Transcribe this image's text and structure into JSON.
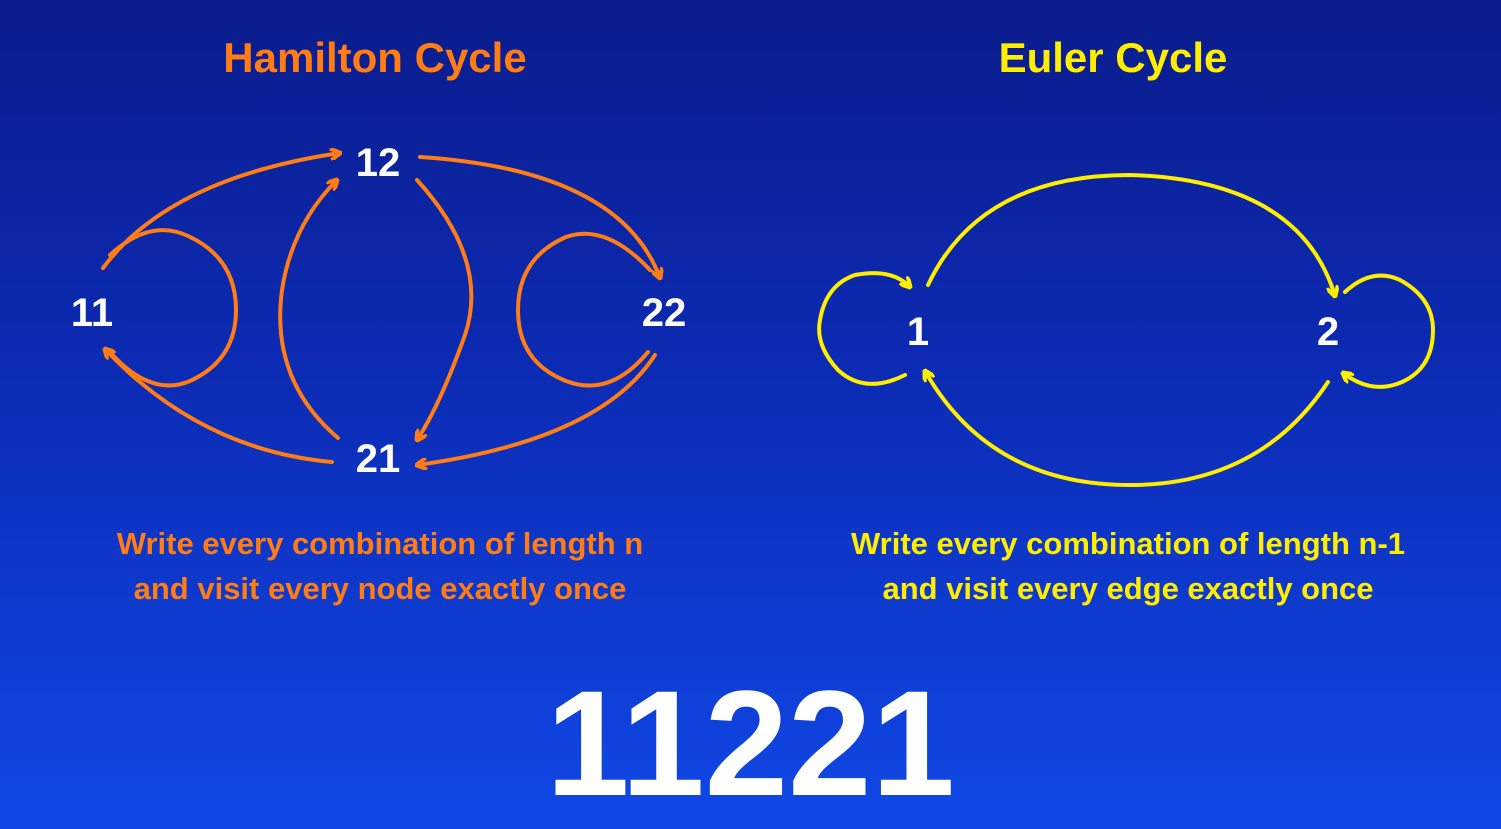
{
  "hamilton": {
    "title": "Hamilton Cycle",
    "color": "#ff7d14",
    "nodes": [
      "11",
      "12",
      "22",
      "21"
    ],
    "caption_line1": "Write every combination of length n",
    "caption_line2": "and visit every node exactly once"
  },
  "euler": {
    "title": "Euler Cycle",
    "color": "#ffee00",
    "nodes": [
      "1",
      "2"
    ],
    "caption_line1": "Write every combination of length n-1",
    "caption_line2": "and visit every edge exactly once"
  },
  "result": "11221"
}
